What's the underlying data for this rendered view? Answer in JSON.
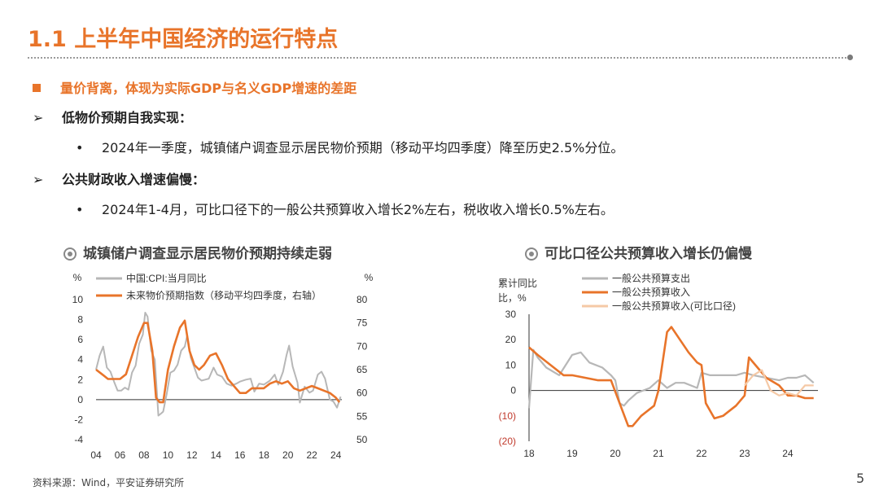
{
  "slide": {
    "title": "1.1 上半年中国经济的运行特点",
    "bullet_main": "量价背离，体现为实际GDP与名义GDP增速的差距",
    "sub1_title": "低物价预期自我实现：",
    "sub1_text": "2024年一季度，城镇储户调查显示居民物价预期（移动平均四季度）降至历史2.5%分位。",
    "sub2_title": "公共财政收入增速偏慢：",
    "sub2_text": "2024年1-4月，可比口径下的一般公共预算收入增长2%左右，税收收入增长0.5%左右。",
    "source": "资料来源：Wind，平安证券研究所",
    "page_number": "5",
    "arrow_glyph": "➢",
    "dot_glyph": "•"
  },
  "colors": {
    "accent": "#e8742a",
    "gray_series": "#b7b7b7",
    "light_series": "#f5c9a6",
    "text": "#222222",
    "neg_label": "#c0392b"
  },
  "chart_data": [
    {
      "type": "line",
      "title": "城镇储户调查显示居民物价预期持续走弱",
      "ylabel_left": "%",
      "ylabel_right": "%",
      "ylim_left": [
        -4,
        10
      ],
      "ylim_right": [
        50,
        80
      ],
      "yticks_left": [
        "10",
        "8",
        "6",
        "4",
        "2",
        "0",
        "-2",
        "-4"
      ],
      "yticks_right": [
        "80",
        "75",
        "70",
        "65",
        "60",
        "55",
        "50"
      ],
      "xticks": [
        "04",
        "06",
        "08",
        "10",
        "12",
        "14",
        "16",
        "18",
        "20",
        "22",
        "24"
      ],
      "xlim": [
        2004,
        2024.5
      ],
      "series": [
        {
          "name": "中国:CPI:当月同比",
          "axis": "left",
          "color": "#b7b7b7",
          "x": [
            2004,
            2004.3,
            2004.6,
            2004.9,
            2005.2,
            2005.5,
            2005.8,
            2006.1,
            2006.4,
            2006.7,
            2007.0,
            2007.3,
            2007.6,
            2007.9,
            2008.1,
            2008.3,
            2008.6,
            2008.9,
            2009.2,
            2009.4,
            2009.6,
            2009.9,
            2010.2,
            2010.5,
            2010.8,
            2011.1,
            2011.4,
            2011.6,
            2011.9,
            2012.2,
            2012.5,
            2012.8,
            2013.1,
            2013.4,
            2013.8,
            2014.1,
            2014.5,
            2014.9,
            2015.3,
            2015.7,
            2016.0,
            2016.5,
            2016.9,
            2017.2,
            2017.6,
            2018.0,
            2018.5,
            2018.9,
            2019.2,
            2019.6,
            2019.9,
            2020.1,
            2020.4,
            2020.8,
            2021.0,
            2021.4,
            2021.8,
            2022.1,
            2022.5,
            2022.8,
            2023.1,
            2023.5,
            2023.8,
            2024.1,
            2024.4
          ],
          "values": [
            3.0,
            4.4,
            5.3,
            3.2,
            2.8,
            1.8,
            0.9,
            0.9,
            1.2,
            1.0,
            2.7,
            3.4,
            5.6,
            6.5,
            8.7,
            8.3,
            4.9,
            4.0,
            -1.6,
            -1.4,
            -1.2,
            0.6,
            2.7,
            2.9,
            3.5,
            4.9,
            5.3,
            6.4,
            4.2,
            3.2,
            2.2,
            1.9,
            2.0,
            2.1,
            3.2,
            2.5,
            2.3,
            1.6,
            1.4,
            1.6,
            1.8,
            2.0,
            2.1,
            0.8,
            1.6,
            1.5,
            1.9,
            2.5,
            1.5,
            2.8,
            4.5,
            5.4,
            3.3,
            1.7,
            -0.3,
            1.3,
            0.7,
            0.9,
            2.5,
            2.8,
            2.1,
            0.0,
            -0.2,
            -0.8,
            0.3
          ]
        },
        {
          "name": "未来物价预期指数（移动平均四季度，右轴）",
          "axis": "right",
          "color": "#e8742a",
          "x": [
            2004,
            2004.5,
            2005,
            2005.5,
            2006,
            2006.5,
            2007,
            2007.5,
            2008,
            2008.3,
            2008.7,
            2009,
            2009.3,
            2009.6,
            2010,
            2010.5,
            2011,
            2011.4,
            2011.8,
            2012.2,
            2012.6,
            2013,
            2013.5,
            2014,
            2014.5,
            2015,
            2015.5,
            2016,
            2016.5,
            2017,
            2017.5,
            2018,
            2018.5,
            2019,
            2019.5,
            2020,
            2020.5,
            2021,
            2021.5,
            2022,
            2022.5,
            2023,
            2023.5,
            2024,
            2024.3
          ],
          "values": [
            65,
            64,
            63,
            63,
            63,
            64,
            68,
            72,
            75,
            75,
            69,
            59,
            58,
            58,
            65,
            70,
            74,
            75.5,
            69,
            66,
            65,
            66,
            68,
            68.5,
            66,
            63,
            61.5,
            60,
            60,
            61,
            61,
            61,
            62,
            62.5,
            62,
            62.5,
            61,
            60.5,
            61,
            61.5,
            61,
            60.5,
            60,
            59,
            58
          ]
        }
      ]
    },
    {
      "type": "line",
      "title": "可比口径公共预算收入增长仍偏慢",
      "ylabel": "累计同比，%",
      "ylim": [
        -20,
        30
      ],
      "yticks": [
        "30",
        "20",
        "10",
        "0",
        "(10)",
        "(20)"
      ],
      "xticks": [
        "18",
        "19",
        "20",
        "21",
        "22",
        "23",
        "24"
      ],
      "xlim": [
        2018,
        2024.7
      ],
      "series": [
        {
          "name": "一般公共预算支出",
          "color": "#b7b7b7",
          "x": [
            2018.0,
            2018.1,
            2018.2,
            2018.4,
            2018.7,
            2019.0,
            2019.2,
            2019.4,
            2019.7,
            2019.9,
            2020.0,
            2020.1,
            2020.2,
            2020.3,
            2020.5,
            2020.8,
            2021.0,
            2021.2,
            2021.4,
            2021.6,
            2021.9,
            2022.0,
            2022.2,
            2022.5,
            2022.8,
            2023.0,
            2023.2,
            2023.5,
            2023.8,
            2024.0,
            2024.2,
            2024.4,
            2024.6
          ],
          "values": [
            -7,
            16,
            13,
            9,
            6,
            14,
            15,
            11,
            9,
            6,
            4,
            -5,
            -6,
            -4,
            -1,
            1,
            4,
            1,
            3,
            3,
            1,
            7,
            6,
            6,
            6,
            7,
            6,
            5,
            4,
            5,
            5,
            6,
            3
          ]
        },
        {
          "name": "一般公共预算收入",
          "color": "#e8742a",
          "x": [
            2018.0,
            2018.2,
            2018.5,
            2018.8,
            2019.0,
            2019.3,
            2019.6,
            2019.9,
            2020.1,
            2020.3,
            2020.4,
            2020.6,
            2020.9,
            2021.0,
            2021.2,
            2021.3,
            2021.5,
            2021.7,
            2021.9,
            2022.0,
            2022.1,
            2022.3,
            2022.5,
            2022.8,
            2023.0,
            2023.1,
            2023.3,
            2023.5,
            2023.8,
            2024.0,
            2024.2,
            2024.4,
            2024.6
          ],
          "values": [
            17,
            14,
            10,
            6,
            6,
            5,
            4,
            4,
            -5,
            -14,
            -14,
            -10,
            -6,
            0,
            23,
            25,
            20,
            15,
            11,
            10,
            -5,
            -11,
            -10,
            -6,
            -2,
            13,
            9,
            5,
            2,
            -2,
            -2,
            -3,
            -3
          ]
        },
        {
          "name": "一般公共预算收入(可比口径)",
          "color": "#f5c9a6",
          "x": [
            2023.0,
            2023.2,
            2023.4,
            2023.6,
            2023.8,
            2024.0,
            2024.2,
            2024.4,
            2024.6
          ],
          "values": [
            2,
            6,
            8,
            0,
            -2,
            -1,
            -2,
            2,
            2
          ]
        }
      ]
    }
  ]
}
